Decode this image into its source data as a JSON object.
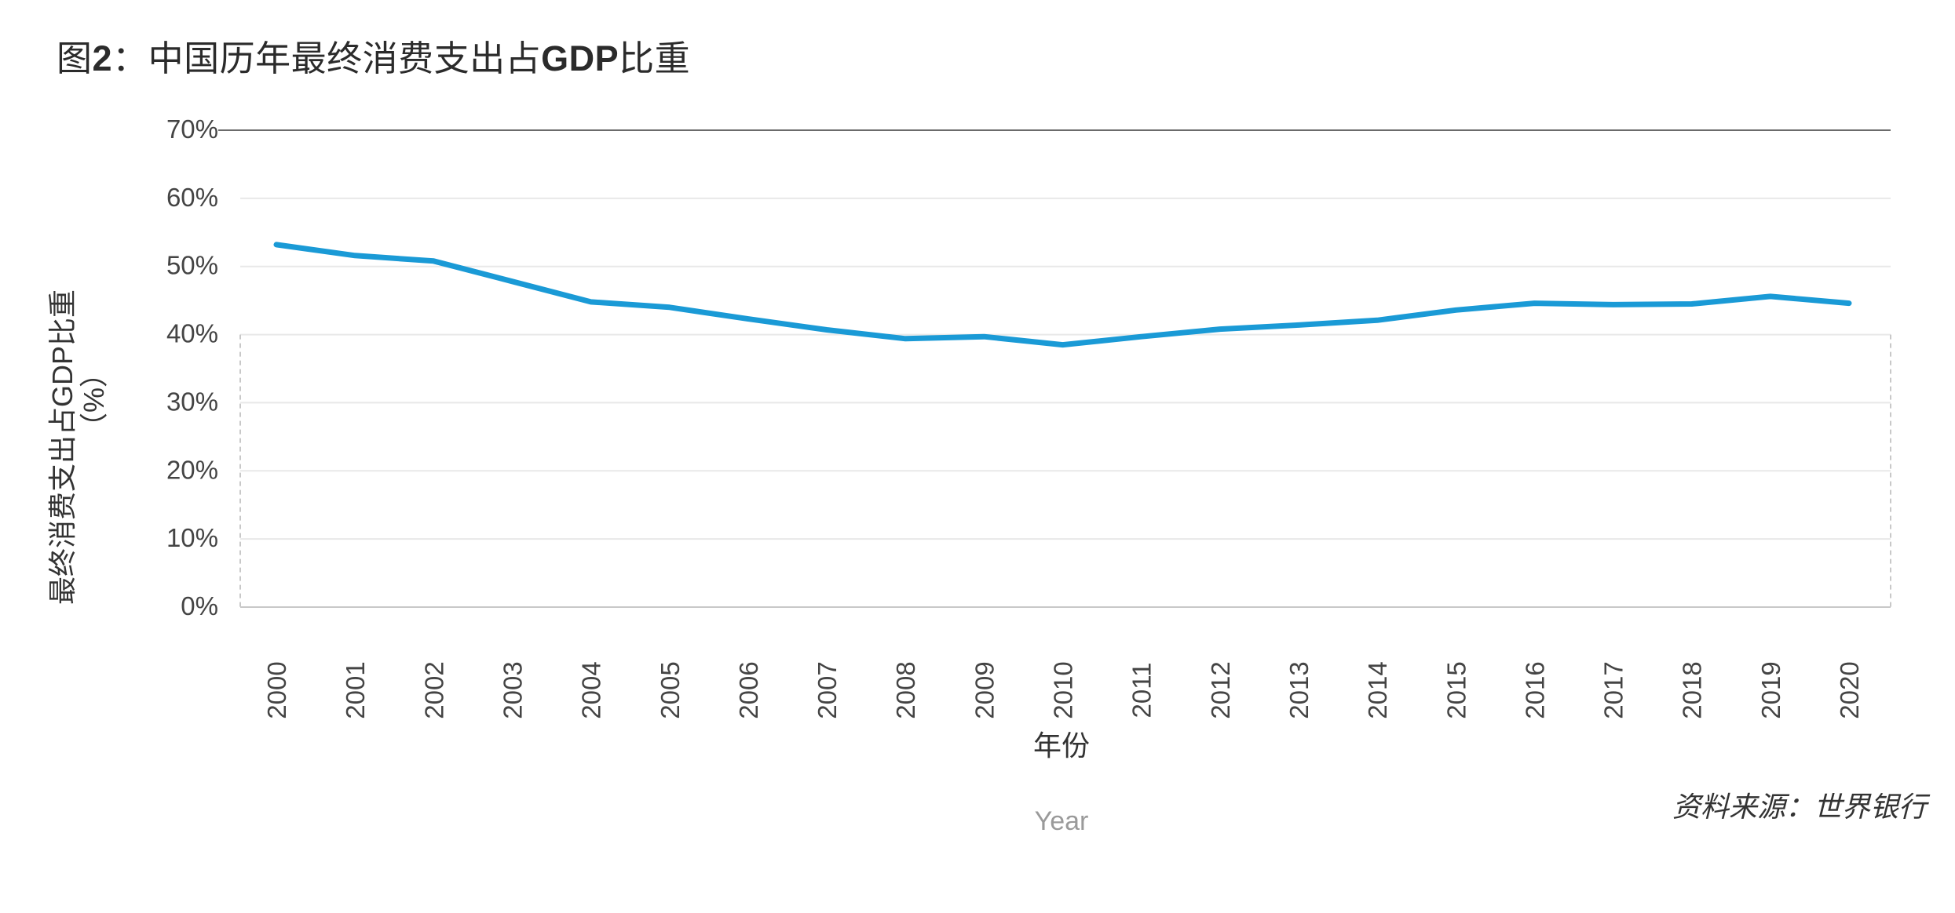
{
  "title": {
    "prefix": "图",
    "number": "2",
    "separator": "：",
    "text_cn": "中国历年最终消费支出占",
    "text_gdp": "GDP",
    "text_end": "比重"
  },
  "source": "资料来源：世界银行",
  "colors": {
    "line": "#1a9ad6",
    "axis_top": "#6b6b6b",
    "grid": "#e8e8e8",
    "dashed": "#c8c8c8"
  },
  "chart_data": {
    "type": "line",
    "title": "中国历年最终消费支出占GDP比重",
    "ylabel_line1": "最终消费支出占GDP比重",
    "ylabel_line2": "（%）",
    "xlabel_cn": "年份",
    "xlabel_en": "Year",
    "ylim": [
      0,
      70
    ],
    "yticks": [
      "0%",
      "10%",
      "20%",
      "30%",
      "40%",
      "50%",
      "60%",
      "70%"
    ],
    "categories": [
      "2000",
      "2001",
      "2002",
      "2003",
      "2004",
      "2005",
      "2006",
      "2007",
      "2008",
      "2009",
      "2010",
      "2011",
      "2012",
      "2013",
      "2014",
      "2015",
      "2016",
      "2017",
      "2018",
      "2019",
      "2020"
    ],
    "series": [
      {
        "values": [
          53.2,
          51.6,
          50.8,
          47.8,
          44.8,
          44.0,
          42.3,
          40.7,
          39.4,
          39.7,
          38.5,
          39.7,
          40.8,
          41.4,
          42.1,
          43.6,
          44.6,
          44.4,
          44.5,
          45.6,
          44.6
        ]
      }
    ],
    "grid": true,
    "legend": "none"
  }
}
